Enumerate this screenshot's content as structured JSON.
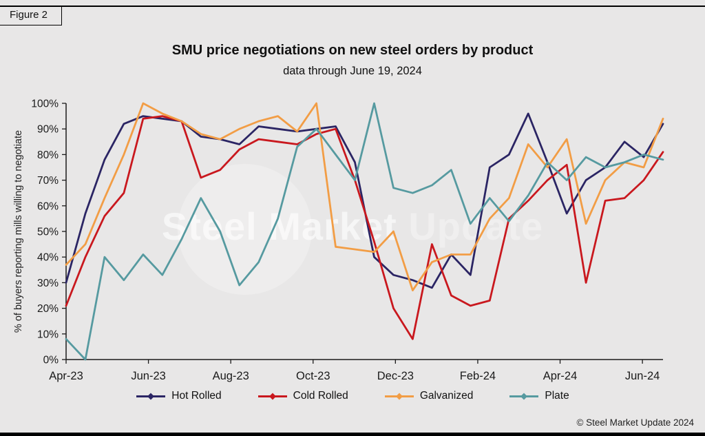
{
  "figure_label": "Figure 2",
  "title": "SMU price negotiations on new steel orders by product",
  "subtitle": "data through June 19, 2024",
  "watermark": {
    "text1": "Steel Market ",
    "text2": "Update"
  },
  "copyright": "© Steel Market Update 2024",
  "chart_data": {
    "type": "line",
    "title": "SMU price negotiations on new steel orders by product",
    "subtitle": "data through June 19, 2024",
    "xlabel": "",
    "ylabel": "% of buyers reporting mills willing to negotiate",
    "ylim": [
      0,
      100
    ],
    "y_tick_step": 10,
    "y_tick_suffix": "%",
    "grid": false,
    "legend_position": "bottom",
    "x_tick_labels": [
      "Apr-23",
      "Jun-23",
      "Aug-23",
      "Oct-23",
      "Dec-23",
      "Feb-24",
      "Apr-24",
      "Jun-24"
    ],
    "x_tick_month_positions": [
      0,
      2,
      4,
      6,
      8,
      10,
      12,
      14
    ],
    "x_total_months": 14.5,
    "x_note": "biweekly survey results from Apr-23 through mid Jun-24",
    "series": [
      {
        "name": "Hot Rolled",
        "color": "#2b2564",
        "values": [
          30,
          57,
          78,
          92,
          95,
          94,
          93,
          87,
          86,
          84,
          91,
          90,
          89,
          90,
          91,
          77,
          40,
          33,
          31,
          28,
          41,
          33,
          75,
          80,
          96,
          77,
          57,
          70,
          75,
          85,
          79,
          92
        ]
      },
      {
        "name": "Cold Rolled",
        "color": "#c9181e",
        "values": [
          21,
          40,
          56,
          65,
          94,
          95,
          93,
          71,
          74,
          82,
          86,
          85,
          84,
          88,
          90,
          70,
          46,
          20,
          8,
          45,
          25,
          21,
          23,
          55,
          62,
          70,
          76,
          30,
          62,
          63,
          70,
          81
        ]
      },
      {
        "name": "Galvanized",
        "color": "#f29d45",
        "values": [
          37,
          45,
          63,
          80,
          100,
          96,
          93,
          88,
          86,
          90,
          93,
          95,
          89,
          100,
          44,
          43,
          42,
          50,
          27,
          38,
          41,
          41,
          55,
          63,
          84,
          75,
          86,
          53,
          70,
          77,
          75,
          94
        ]
      },
      {
        "name": "Plate",
        "color": "#569aa0",
        "values": [
          8,
          0,
          40,
          31,
          41,
          33,
          47,
          63,
          50,
          29,
          38,
          55,
          83,
          90,
          80,
          70,
          100,
          67,
          65,
          68,
          74,
          53,
          63,
          54,
          64,
          77,
          70,
          79,
          75,
          77,
          80,
          78
        ]
      }
    ]
  }
}
